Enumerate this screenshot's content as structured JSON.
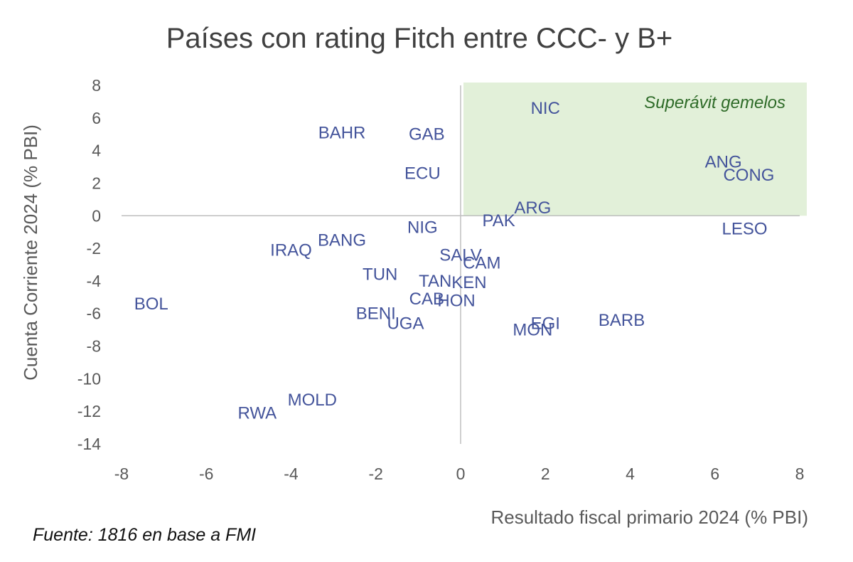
{
  "chart_data": {
    "type": "scatter",
    "title": "Países con rating Fitch entre CCC- y B+",
    "xlabel": "Resultado fiscal primario 2024 (% PBI)",
    "ylabel": "Cuenta Corriente 2024 (% PBI)",
    "xlim": [
      -8,
      8
    ],
    "ylim": [
      -14,
      8
    ],
    "x_ticks": [
      -8,
      -6,
      -4,
      -2,
      0,
      2,
      4,
      6,
      8
    ],
    "y_ticks": [
      8,
      6,
      4,
      2,
      0,
      -2,
      -4,
      -6,
      -8,
      -10,
      -12,
      -14
    ],
    "grid": false,
    "highlight_region": {
      "label": "Superávit gemelos",
      "x": [
        0,
        8
      ],
      "y": [
        0,
        8
      ],
      "color": "#e2f0d9"
    },
    "points": [
      {
        "label": "NIC",
        "x": 2.0,
        "y": 6.6
      },
      {
        "label": "BAHR",
        "x": -2.8,
        "y": 5.1
      },
      {
        "label": "GAB",
        "x": -0.8,
        "y": 5.0
      },
      {
        "label": "ECU",
        "x": -0.9,
        "y": 2.6
      },
      {
        "label": "ANG",
        "x": 6.2,
        "y": 3.3
      },
      {
        "label": "CONG",
        "x": 6.8,
        "y": 2.5
      },
      {
        "label": "ARG",
        "x": 1.7,
        "y": 0.5
      },
      {
        "label": "PAK",
        "x": 0.9,
        "y": -0.3
      },
      {
        "label": "NIG",
        "x": -0.9,
        "y": -0.7
      },
      {
        "label": "LESO",
        "x": 6.7,
        "y": -0.8
      },
      {
        "label": "BANG",
        "x": -2.8,
        "y": -1.5
      },
      {
        "label": "IRAQ",
        "x": -4.0,
        "y": -2.1
      },
      {
        "label": "SALV",
        "x": 0.0,
        "y": -2.4
      },
      {
        "label": "CAM",
        "x": 0.5,
        "y": -2.9
      },
      {
        "label": "TUN",
        "x": -1.9,
        "y": -3.6
      },
      {
        "label": "TAN",
        "x": -0.6,
        "y": -4.0
      },
      {
        "label": "KEN",
        "x": 0.2,
        "y": -4.1
      },
      {
        "label": "CAB",
        "x": -0.8,
        "y": -5.1
      },
      {
        "label": "HON",
        "x": -0.1,
        "y": -5.2
      },
      {
        "label": "BOL",
        "x": -7.3,
        "y": -5.4
      },
      {
        "label": "BENI",
        "x": -2.0,
        "y": -6.0
      },
      {
        "label": "UGA",
        "x": -1.3,
        "y": -6.6
      },
      {
        "label": "EGI",
        "x": 2.0,
        "y": -6.6
      },
      {
        "label": "MON",
        "x": 1.7,
        "y": -7.0
      },
      {
        "label": "BARB",
        "x": 3.8,
        "y": -6.4
      },
      {
        "label": "MOLD",
        "x": -3.5,
        "y": -11.3
      },
      {
        "label": "RWA",
        "x": -4.8,
        "y": -12.1
      }
    ]
  },
  "source": "Fuente: 1816 en base a FMI"
}
